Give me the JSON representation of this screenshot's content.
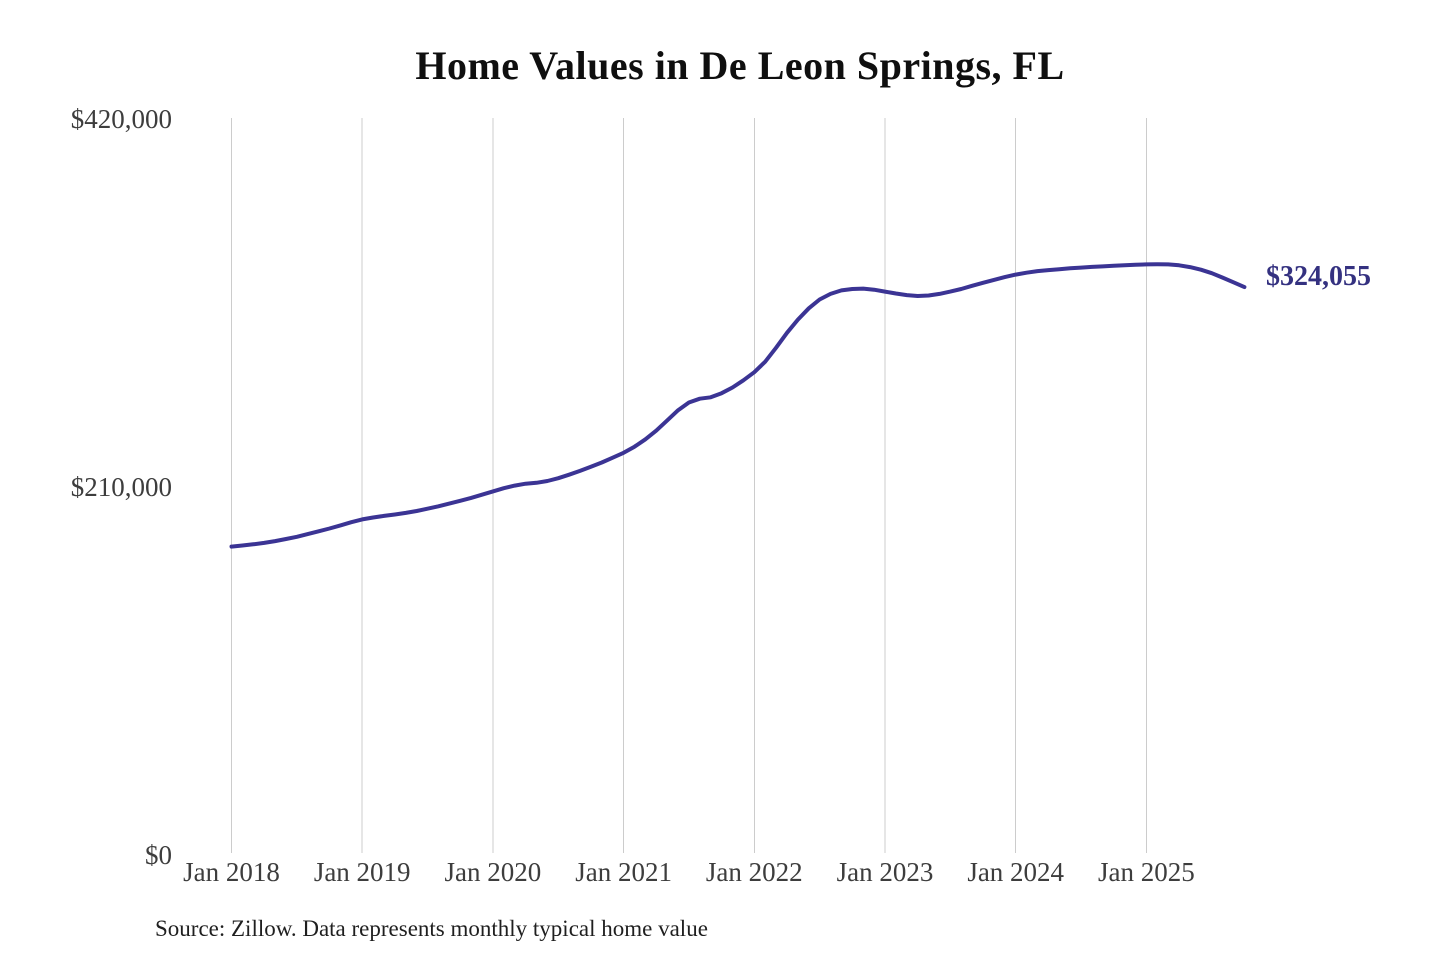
{
  "colors": {
    "line": "#3b3494",
    "end_label": "#343180",
    "gridline": "#cccccc",
    "tick_text": "#3d3d3d",
    "title_text": "#0f0f0f",
    "source_text": "#1f1f1f",
    "background": "#ffffff"
  },
  "chart_data": {
    "type": "line",
    "title": "Home Values in De Leon Springs, FL",
    "source_note": "Source: Zillow. Data represents monthly typical home value",
    "xlabel": "",
    "ylabel": "",
    "ylim": [
      0,
      420000
    ],
    "grid": "vertical-only",
    "legend": "none",
    "x_tick_labels": [
      "Jan 2018",
      "Jan 2019",
      "Jan 2020",
      "Jan 2021",
      "Jan 2022",
      "Jan 2023",
      "Jan 2024",
      "Jan 2025"
    ],
    "y_ticks": [
      {
        "value": 0,
        "label": "$0"
      },
      {
        "value": 210000,
        "label": "$210,000"
      },
      {
        "value": 420000,
        "label": "$420,000"
      }
    ],
    "annotation": {
      "text": "$324,055",
      "month": "2025-10",
      "value": 324055
    },
    "series": [
      {
        "name": "Monthly typical home value",
        "x": [
          "2018-01",
          "2018-02",
          "2018-03",
          "2018-04",
          "2018-05",
          "2018-06",
          "2018-07",
          "2018-08",
          "2018-09",
          "2018-10",
          "2018-11",
          "2018-12",
          "2019-01",
          "2019-02",
          "2019-03",
          "2019-04",
          "2019-05",
          "2019-06",
          "2019-07",
          "2019-08",
          "2019-09",
          "2019-10",
          "2019-11",
          "2019-12",
          "2020-01",
          "2020-02",
          "2020-03",
          "2020-04",
          "2020-05",
          "2020-06",
          "2020-07",
          "2020-08",
          "2020-09",
          "2020-10",
          "2020-11",
          "2020-12",
          "2021-01",
          "2021-02",
          "2021-03",
          "2021-04",
          "2021-05",
          "2021-06",
          "2021-07",
          "2021-08",
          "2021-09",
          "2021-10",
          "2021-11",
          "2021-12",
          "2022-01",
          "2022-02",
          "2022-03",
          "2022-04",
          "2022-05",
          "2022-06",
          "2022-07",
          "2022-08",
          "2022-09",
          "2022-10",
          "2022-11",
          "2022-12",
          "2023-01",
          "2023-02",
          "2023-03",
          "2023-04",
          "2023-05",
          "2023-06",
          "2023-07",
          "2023-08",
          "2023-09",
          "2023-10",
          "2023-11",
          "2023-12",
          "2024-01",
          "2024-02",
          "2024-03",
          "2024-04",
          "2024-05",
          "2024-06",
          "2024-07",
          "2024-08",
          "2024-09",
          "2024-10",
          "2024-11",
          "2024-12",
          "2025-01",
          "2025-02",
          "2025-03",
          "2025-04",
          "2025-05",
          "2025-06",
          "2025-07",
          "2025-08",
          "2025-09",
          "2025-10"
        ],
        "values": [
          176000,
          176600,
          177300,
          178100,
          179100,
          180300,
          181600,
          183100,
          184700,
          186300,
          188100,
          189900,
          191500,
          192600,
          193500,
          194300,
          195200,
          196300,
          197600,
          199000,
          200500,
          202100,
          203800,
          205600,
          207500,
          209300,
          210800,
          211900,
          212400,
          213400,
          215000,
          217000,
          219200,
          221500,
          224000,
          226700,
          229500,
          233000,
          237200,
          242200,
          248000,
          253800,
          258200,
          260400,
          261200,
          263500,
          266800,
          270900,
          275500,
          281500,
          289500,
          298000,
          305500,
          312000,
          317000,
          320200,
          322200,
          323000,
          323200,
          322600,
          321500,
          320400,
          319500,
          319000,
          319300,
          320200,
          321500,
          323000,
          324800,
          326500,
          328200,
          329800,
          331200,
          332300,
          333200,
          333800,
          334300,
          334800,
          335200,
          335600,
          335900,
          336200,
          336500,
          336800,
          337000,
          337100,
          337000,
          336500,
          335500,
          334000,
          332000,
          329500,
          326800,
          324055
        ]
      }
    ]
  }
}
